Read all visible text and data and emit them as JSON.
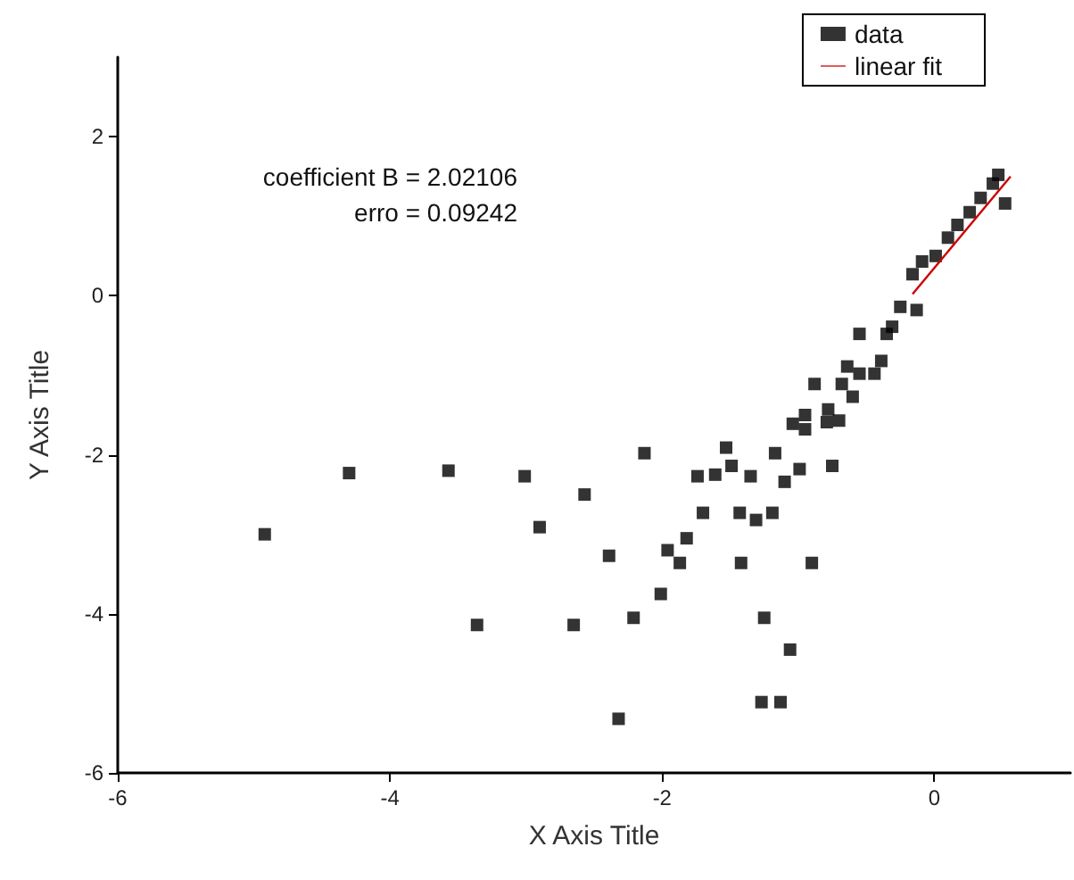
{
  "chart_data": {
    "type": "scatter",
    "xlabel": "X Axis Title",
    "ylabel": "Y Axis Title",
    "annotations": [
      "coefficient B = 2.02106",
      "erro = 0.09242"
    ],
    "xlim": [
      -6,
      1
    ],
    "xticks": [
      -6,
      -4,
      -2,
      0
    ],
    "ylim": [
      -6,
      3
    ],
    "yticks": [
      -6,
      -4,
      -2,
      0,
      2
    ],
    "grid": false,
    "legend": "top right",
    "marker": "square",
    "series": [
      {
        "name": "data",
        "color": "#000000",
        "x": [
          -4.92,
          -4.3,
          -3.57,
          -3.01,
          -2.9,
          -2.57,
          -2.39,
          -3.36,
          -2.65,
          -2.21,
          -2.32,
          -2.13,
          -2.01,
          -1.96,
          -1.87,
          -1.82,
          -1.7,
          -1.74,
          -1.61,
          -1.49,
          -1.53,
          -1.35,
          -1.43,
          -1.31,
          -1.42,
          -1.25,
          -1.06,
          -1.27,
          -1.13,
          -1.19,
          -1.17,
          -1.1,
          -0.99,
          -0.9,
          -0.75,
          -1.04,
          -0.95,
          -0.95,
          -0.88,
          -0.79,
          -0.78,
          -0.7,
          -0.68,
          -0.6,
          -0.64,
          -0.55,
          -0.44,
          -0.39,
          -0.55,
          -0.35,
          -0.31,
          -0.25,
          -0.13,
          -0.16,
          -0.09,
          0.01,
          0.1,
          0.17,
          0.26,
          0.34,
          0.43,
          0.47,
          0.52
        ],
        "values": [
          -3.0,
          -2.23,
          -2.2,
          -2.27,
          -2.91,
          -2.5,
          -3.27,
          -4.14,
          -4.14,
          -4.05,
          -5.32,
          -1.98,
          -3.75,
          -3.2,
          -3.36,
          -3.05,
          -2.73,
          -2.27,
          -2.25,
          -2.14,
          -1.91,
          -2.27,
          -2.73,
          -2.82,
          -3.36,
          -4.05,
          -4.45,
          -5.11,
          -5.11,
          -2.73,
          -1.98,
          -2.34,
          -2.18,
          -3.36,
          -2.14,
          -1.61,
          -1.68,
          -1.5,
          -1.11,
          -1.59,
          -1.43,
          -1.57,
          -1.11,
          -1.27,
          -0.89,
          -0.98,
          -0.98,
          -0.82,
          -0.48,
          -0.48,
          -0.39,
          -0.14,
          -0.18,
          0.27,
          0.43,
          0.5,
          0.73,
          0.89,
          1.05,
          1.23,
          1.41,
          1.52,
          1.16
        ]
      },
      {
        "name": "linear fit",
        "type": "line",
        "color": "#cc0000",
        "marker": "none",
        "line_style": "solid",
        "x": [
          -0.16,
          0.56
        ],
        "values": [
          0.02,
          1.5
        ]
      }
    ]
  }
}
